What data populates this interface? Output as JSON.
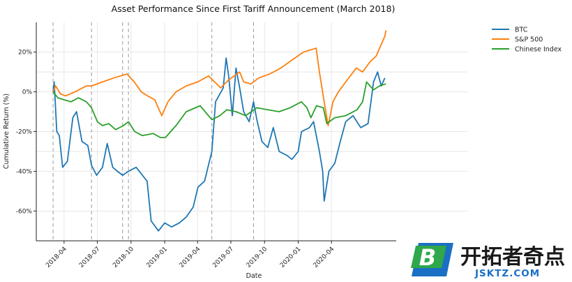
{
  "chart_data": {
    "type": "line",
    "title": "Asset Performance Since First Tariff Announcement (March 2018)",
    "xlabel": "Date",
    "ylabel": "Cumulative Return (%)",
    "x_ticks": [
      "2018-04",
      "2018-07",
      "2018-10",
      "2019-01",
      "2019-04",
      "2019-07",
      "2019-10",
      "2020-01",
      "2020-04"
    ],
    "y_ticks": [
      "-60%",
      "-40%",
      "-20%",
      "0%",
      "20%"
    ],
    "ylim": [
      -75,
      35
    ],
    "grid": true,
    "legend_position": "top-right",
    "event_lines": [
      "2018-03-02",
      "2018-06-15",
      "2018-09-08",
      "2018-09-24",
      "2019-05-10",
      "2019-09-01"
    ],
    "series": [
      {
        "name": "BTC",
        "color": "#1f77b4",
        "points": [
          [
            "2018-03-02",
            0
          ],
          [
            "2018-03-05",
            5
          ],
          [
            "2018-03-12",
            -20
          ],
          [
            "2018-03-19",
            -22
          ],
          [
            "2018-03-28",
            -38
          ],
          [
            "2018-04-10",
            -35
          ],
          [
            "2018-04-25",
            -13
          ],
          [
            "2018-05-05",
            -10
          ],
          [
            "2018-05-20",
            -25
          ],
          [
            "2018-06-05",
            -27
          ],
          [
            "2018-06-15",
            -37
          ],
          [
            "2018-06-29",
            -42
          ],
          [
            "2018-07-15",
            -38
          ],
          [
            "2018-07-28",
            -26
          ],
          [
            "2018-08-12",
            -38
          ],
          [
            "2018-08-25",
            -40
          ],
          [
            "2018-09-08",
            -42
          ],
          [
            "2018-09-24",
            -40
          ],
          [
            "2018-10-15",
            -38
          ],
          [
            "2018-11-14",
            -45
          ],
          [
            "2018-11-25",
            -65
          ],
          [
            "2018-12-15",
            -70
          ],
          [
            "2019-01-01",
            -66
          ],
          [
            "2019-01-20",
            -68
          ],
          [
            "2019-02-10",
            -66
          ],
          [
            "2019-03-01",
            -63
          ],
          [
            "2019-03-20",
            -58
          ],
          [
            "2019-04-02",
            -48
          ],
          [
            "2019-04-20",
            -45
          ],
          [
            "2019-05-10",
            -30
          ],
          [
            "2019-05-20",
            -5
          ],
          [
            "2019-06-10",
            2
          ],
          [
            "2019-06-18",
            17
          ],
          [
            "2019-06-25",
            8
          ],
          [
            "2019-07-05",
            -12
          ],
          [
            "2019-07-15",
            12
          ],
          [
            "2019-07-25",
            2
          ],
          [
            "2019-08-05",
            -10
          ],
          [
            "2019-08-20",
            -15
          ],
          [
            "2019-09-01",
            -5
          ],
          [
            "2019-09-10",
            -14
          ],
          [
            "2019-09-24",
            -25
          ],
          [
            "2019-10-10",
            -28
          ],
          [
            "2019-10-25",
            -18
          ],
          [
            "2019-11-10",
            -30
          ],
          [
            "2019-12-01",
            -32
          ],
          [
            "2019-12-15",
            -34
          ],
          [
            "2020-01-01",
            -30
          ],
          [
            "2020-01-10",
            -20
          ],
          [
            "2020-02-01",
            -18
          ],
          [
            "2020-02-12",
            -15
          ],
          [
            "2020-02-28",
            -30
          ],
          [
            "2020-03-08",
            -40
          ],
          [
            "2020-03-12",
            -55
          ],
          [
            "2020-03-25",
            -40
          ],
          [
            "2020-04-10",
            -36
          ],
          [
            "2020-04-25",
            -25
          ],
          [
            "2020-05-10",
            -15
          ],
          [
            "2020-05-30",
            -12
          ],
          [
            "2020-06-20",
            -18
          ],
          [
            "2020-07-10",
            -16
          ],
          [
            "2020-07-25",
            5
          ],
          [
            "2020-08-05",
            10
          ],
          [
            "2020-08-15",
            3
          ],
          [
            "2020-08-25",
            7
          ]
        ]
      },
      {
        "name": "S&P 500",
        "color": "#ff7f0e",
        "points": [
          [
            "2018-03-02",
            0
          ],
          [
            "2018-03-09",
            3
          ],
          [
            "2018-03-22",
            -1
          ],
          [
            "2018-04-05",
            -2
          ],
          [
            "2018-05-01",
            0
          ],
          [
            "2018-06-01",
            3
          ],
          [
            "2018-06-15",
            3
          ],
          [
            "2018-07-15",
            5
          ],
          [
            "2018-08-15",
            7
          ],
          [
            "2018-09-20",
            9
          ],
          [
            "2018-10-10",
            5
          ],
          [
            "2018-10-29",
            0
          ],
          [
            "2018-11-15",
            -2
          ],
          [
            "2018-12-05",
            -4
          ],
          [
            "2018-12-24",
            -12
          ],
          [
            "2019-01-10",
            -5
          ],
          [
            "2019-02-01",
            0
          ],
          [
            "2019-03-01",
            3
          ],
          [
            "2019-04-01",
            5
          ],
          [
            "2019-05-01",
            8
          ],
          [
            "2019-06-03",
            2
          ],
          [
            "2019-06-25",
            6
          ],
          [
            "2019-07-25",
            10
          ],
          [
            "2019-08-05",
            5
          ],
          [
            "2019-08-25",
            4
          ],
          [
            "2019-09-15",
            7
          ],
          [
            "2019-10-15",
            9
          ],
          [
            "2019-11-15",
            12
          ],
          [
            "2019-12-15",
            16
          ],
          [
            "2020-01-15",
            20
          ],
          [
            "2020-02-19",
            22
          ],
          [
            "2020-02-28",
            10
          ],
          [
            "2020-03-12",
            -5
          ],
          [
            "2020-03-23",
            -17
          ],
          [
            "2020-04-05",
            -5
          ],
          [
            "2020-04-20",
            0
          ],
          [
            "2020-05-10",
            5
          ],
          [
            "2020-06-08",
            12
          ],
          [
            "2020-06-25",
            10
          ],
          [
            "2020-07-15",
            15
          ],
          [
            "2020-08-01",
            18
          ],
          [
            "2020-08-25",
            28
          ],
          [
            "2020-08-28",
            31
          ]
        ]
      },
      {
        "name": "Chinese Index",
        "color": "#2ca02c",
        "points": [
          [
            "2018-03-02",
            0
          ],
          [
            "2018-03-15",
            -3
          ],
          [
            "2018-04-01",
            -4
          ],
          [
            "2018-04-20",
            -5
          ],
          [
            "2018-05-10",
            -3
          ],
          [
            "2018-06-01",
            -5
          ],
          [
            "2018-06-15",
            -8
          ],
          [
            "2018-07-01",
            -15
          ],
          [
            "2018-07-15",
            -17
          ],
          [
            "2018-08-01",
            -16
          ],
          [
            "2018-08-20",
            -19
          ],
          [
            "2018-09-10",
            -17
          ],
          [
            "2018-09-24",
            -15
          ],
          [
            "2018-10-11",
            -20
          ],
          [
            "2018-11-01",
            -22
          ],
          [
            "2018-12-01",
            -21
          ],
          [
            "2018-12-20",
            -23
          ],
          [
            "2019-01-03",
            -23
          ],
          [
            "2019-02-01",
            -17
          ],
          [
            "2019-03-01",
            -10
          ],
          [
            "2019-04-08",
            -7
          ],
          [
            "2019-05-10",
            -14
          ],
          [
            "2019-06-01",
            -12
          ],
          [
            "2019-06-20",
            -9
          ],
          [
            "2019-07-15",
            -10
          ],
          [
            "2019-08-10",
            -12
          ],
          [
            "2019-09-10",
            -8
          ],
          [
            "2019-10-10",
            -9
          ],
          [
            "2019-11-10",
            -10
          ],
          [
            "2019-12-10",
            -8
          ],
          [
            "2020-01-10",
            -5
          ],
          [
            "2020-01-25",
            -8
          ],
          [
            "2020-02-05",
            -13
          ],
          [
            "2020-02-20",
            -7
          ],
          [
            "2020-03-10",
            -8
          ],
          [
            "2020-03-19",
            -16
          ],
          [
            "2020-04-10",
            -13
          ],
          [
            "2020-05-10",
            -12
          ],
          [
            "2020-06-10",
            -9
          ],
          [
            "2020-06-25",
            -5
          ],
          [
            "2020-07-06",
            5
          ],
          [
            "2020-07-25",
            1
          ],
          [
            "2020-08-10",
            3
          ],
          [
            "2020-08-28",
            4
          ]
        ]
      }
    ]
  },
  "watermark": {
    "badge_letter": "B",
    "brand_cn": "开拓者奇点",
    "brand_en": "JSKTZ.COM"
  }
}
